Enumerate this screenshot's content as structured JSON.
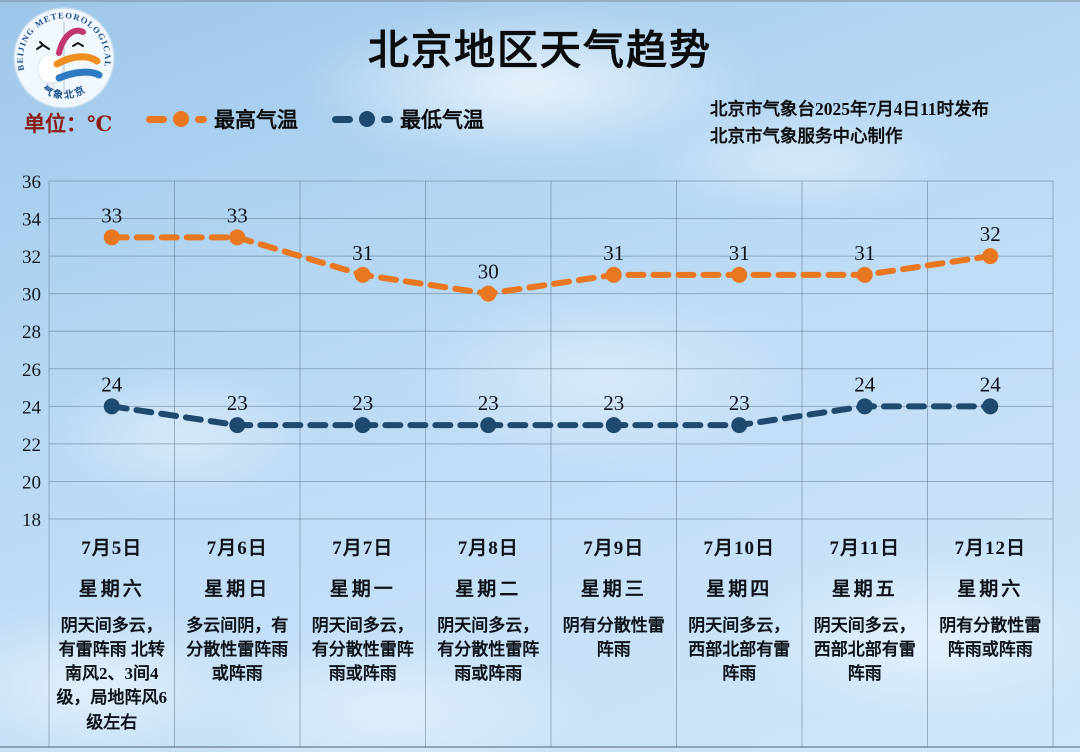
{
  "header": {
    "title": "北京地区天气趋势",
    "unit_label": "单位：℃",
    "unit_color": "#8B1A10",
    "issue_line1": "北京市气象台2025年7月4日11时发布",
    "issue_line2": "北京市气象服务中心制作",
    "legend": {
      "high": {
        "label": "最高气温",
        "color": "#E8771F"
      },
      "low": {
        "label": "最低气温",
        "color": "#1E4A70"
      }
    }
  },
  "logo": {
    "arc_text": "BEIJING METEOROLOGICAL SERVICE",
    "bottom_text": "气象北京"
  },
  "chart_data": {
    "type": "line",
    "title": "北京地区天气趋势",
    "unit": "℃",
    "categories": [
      "7月5日",
      "7月6日",
      "7月7日",
      "7月8日",
      "7月9日",
      "7月10日",
      "7月11日",
      "7月12日"
    ],
    "weekdays": [
      "星期六",
      "星期日",
      "星期一",
      "星期二",
      "星期三",
      "星期四",
      "星期五",
      "星期六"
    ],
    "series": [
      {
        "name": "最高气温",
        "color": "#E8771F",
        "values": [
          33,
          33,
          31,
          30,
          31,
          31,
          31,
          32
        ]
      },
      {
        "name": "最低气温",
        "color": "#1E4A70",
        "values": [
          24,
          23,
          23,
          23,
          23,
          23,
          24,
          24
        ]
      }
    ],
    "ylim": [
      18,
      36
    ],
    "ytick_step": 2,
    "yticks": [
      36,
      34,
      32,
      30,
      28,
      26,
      24,
      22,
      20,
      18
    ],
    "grid": true,
    "legend_position": "top-left",
    "line_style": "dashed",
    "descriptions": [
      "阴天间多云，有雷阵雨 北转南风2、3间4级，局地阵风6级左右",
      "多云间阴，有分散性雷阵雨或阵雨",
      "阴天间多云，有分散性雷阵雨或阵雨",
      "阴天间多云，有分散性雷阵雨或阵雨",
      "阴有分散性雷阵雨",
      "阴天间多云，西部北部有雷阵雨",
      "阴天间多云，西部北部有雷阵雨",
      "阴有分散性雷阵雨或阵雨"
    ]
  }
}
